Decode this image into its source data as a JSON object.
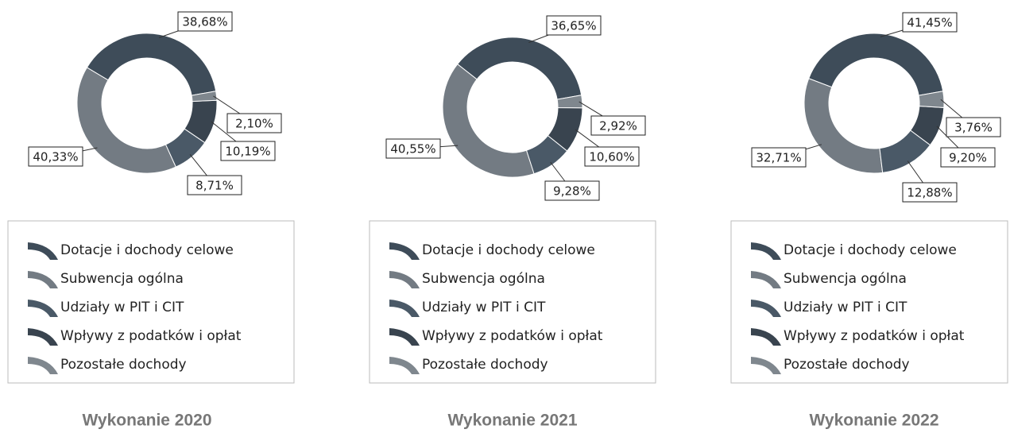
{
  "chart_data": [
    {
      "type": "pie",
      "title": "Wykonanie 2020",
      "categories": [
        "Dotacje i dochody celowe",
        "Subwencja ogólna",
        "Udziały w PIT i CIT",
        "Wpływy z podatków i opłat",
        "Pozostałe dochody"
      ],
      "values": [
        38.68,
        40.33,
        8.71,
        10.19,
        2.1
      ],
      "value_labels": [
        "38,68%",
        "40,33%",
        "8,71%",
        "10,19%",
        "2,10%"
      ],
      "colors": [
        "#3e4c59",
        "#737b83",
        "#4a5967",
        "#39444f",
        "#7f878e"
      ]
    },
    {
      "type": "pie",
      "title": "Wykonanie 2021",
      "categories": [
        "Dotacje i dochody celowe",
        "Subwencja ogólna",
        "Udziały w PIT i CIT",
        "Wpływy z podatków i opłat",
        "Pozostałe dochody"
      ],
      "values": [
        36.65,
        40.55,
        9.28,
        10.6,
        2.92
      ],
      "value_labels": [
        "36,65%",
        "40,55%",
        "9,28%",
        "10,60%",
        "2,92%"
      ],
      "colors": [
        "#3e4c59",
        "#737b83",
        "#4a5967",
        "#39444f",
        "#7f878e"
      ]
    },
    {
      "type": "pie",
      "title": "Wykonanie 2022",
      "categories": [
        "Dotacje i dochody celowe",
        "Subwencja ogólna",
        "Udziały w PIT i CIT",
        "Wpływy z podatków i opłat",
        "Pozostałe dochody"
      ],
      "values": [
        41.45,
        32.71,
        12.88,
        9.2,
        3.76
      ],
      "value_labels": [
        "41,45%",
        "32,71%",
        "12,88%",
        "9,20%",
        "3,76%"
      ],
      "colors": [
        "#3e4c59",
        "#737b83",
        "#4a5967",
        "#39444f",
        "#7f878e"
      ]
    }
  ]
}
